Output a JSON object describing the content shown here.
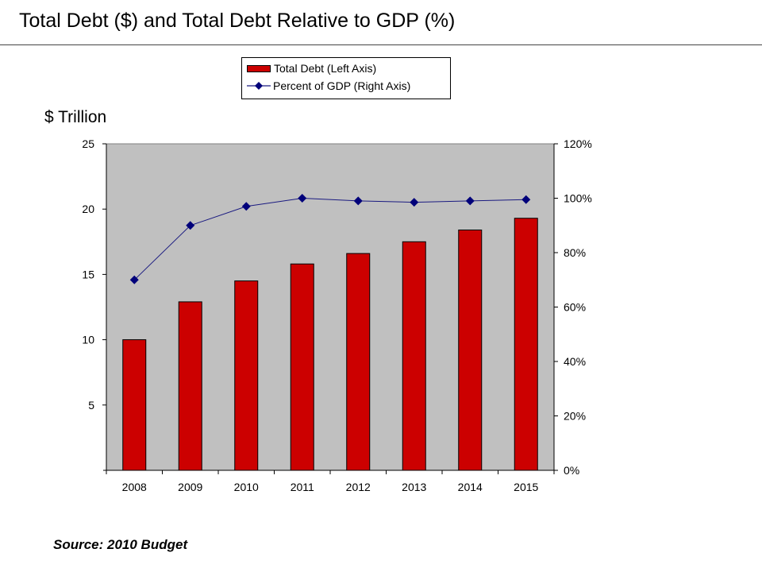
{
  "page": {
    "title": "Total Debt ($) and Total Debt Relative to GDP (%)",
    "source_note": "Source: 2010 Budget"
  },
  "chart_data": {
    "type": "bar",
    "title": "Total Debt ($) and Total Debt Relative to GDP (%)",
    "categories": [
      "2008",
      "2009",
      "2010",
      "2011",
      "2012",
      "2013",
      "2014",
      "2015"
    ],
    "series": [
      {
        "name": "Total Debt (Left Axis)",
        "type": "bar",
        "axis": "left",
        "color": "#cc0000",
        "values": [
          10.0,
          12.9,
          14.5,
          15.8,
          16.6,
          17.5,
          18.4,
          19.3
        ]
      },
      {
        "name": "Percent of GDP (Right Axis)",
        "type": "line",
        "axis": "right",
        "color": "#1a1a80",
        "marker": "diamond",
        "values": [
          70,
          90,
          97,
          100,
          99,
          98.5,
          99,
          99.5
        ]
      }
    ],
    "left_axis": {
      "label": "$ Trillion",
      "range": [
        0,
        25
      ],
      "ticks": [
        5,
        10,
        15,
        20,
        25
      ],
      "tick_labels": [
        "5",
        "10",
        "15",
        "20",
        "25"
      ]
    },
    "right_axis": {
      "range": [
        0,
        120
      ],
      "ticks": [
        0,
        20,
        40,
        60,
        80,
        100,
        120
      ],
      "tick_labels": [
        "0%",
        "20%",
        "40%",
        "60%",
        "80%",
        "100%",
        "120%"
      ]
    },
    "plot_background": "#c0c0c0",
    "grid": false,
    "legend_position": "top-center"
  }
}
